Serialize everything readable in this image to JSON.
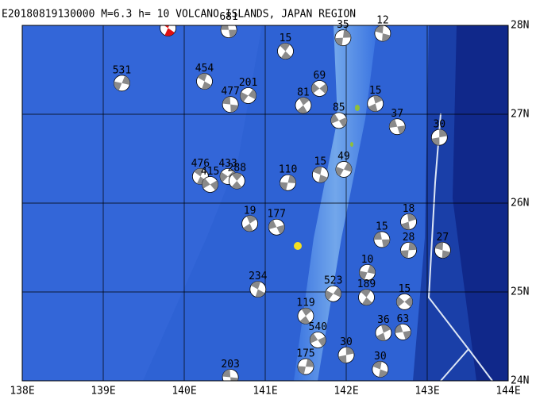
{
  "title": "E20180819130000 M=6.3 h= 10 VOLCANO ISLANDS, JAPAN REGION",
  "map": {
    "lonlim": [
      138,
      144
    ],
    "latlim": [
      24,
      28
    ],
    "lonticks": [
      {
        "value": 138,
        "label": "138E"
      },
      {
        "value": 139,
        "label": "139E"
      },
      {
        "value": 140,
        "label": "140E"
      },
      {
        "value": 141,
        "label": "141E"
      },
      {
        "value": 142,
        "label": "142E"
      },
      {
        "value": 143,
        "label": "143E"
      },
      {
        "value": 144,
        "label": "144E"
      }
    ],
    "latticks": [
      {
        "value": 24,
        "label": "24N"
      },
      {
        "value": 25,
        "label": "25N"
      },
      {
        "value": 26,
        "label": "26N"
      },
      {
        "value": 27,
        "label": "27N"
      },
      {
        "value": 28,
        "label": "28N"
      }
    ]
  },
  "main_event": {
    "lon": 139.8,
    "lat": 27.97,
    "color": "#e01010"
  },
  "events": [
    {
      "label": 681,
      "lon": 140.55,
      "lat": 27.95
    },
    {
      "label": 35,
      "lon": 141.96,
      "lat": 27.86
    },
    {
      "label": 12,
      "lon": 142.45,
      "lat": 27.91
    },
    {
      "label": 531,
      "lon": 139.23,
      "lat": 27.35
    },
    {
      "label": 454,
      "lon": 140.25,
      "lat": 27.37
    },
    {
      "label": 201,
      "lon": 140.79,
      "lat": 27.21
    },
    {
      "label": 15,
      "lon": 141.25,
      "lat": 27.71
    },
    {
      "label": 69,
      "lon": 141.67,
      "lat": 27.29
    },
    {
      "label": 81,
      "lon": 141.47,
      "lat": 27.1
    },
    {
      "label": 85,
      "lon": 141.91,
      "lat": 26.93
    },
    {
      "label": 15,
      "lon": 142.36,
      "lat": 27.12
    },
    {
      "label": 37,
      "lon": 142.63,
      "lat": 26.86
    },
    {
      "label": 30,
      "lon": 143.15,
      "lat": 26.74
    },
    {
      "label": 477,
      "lon": 140.57,
      "lat": 27.11
    },
    {
      "label": 110,
      "lon": 141.28,
      "lat": 26.23
    },
    {
      "label": 15,
      "lon": 141.68,
      "lat": 26.32
    },
    {
      "label": 49,
      "lon": 141.97,
      "lat": 26.38
    },
    {
      "label": 476,
      "lon": 140.2,
      "lat": 26.3
    },
    {
      "label": 433,
      "lon": 140.54,
      "lat": 26.3
    },
    {
      "label": 288,
      "lon": 140.65,
      "lat": 26.25
    },
    {
      "label": 415,
      "lon": 140.32,
      "lat": 26.21
    },
    {
      "label": 19,
      "lon": 140.81,
      "lat": 25.77
    },
    {
      "label": 177,
      "lon": 141.14,
      "lat": 25.73
    },
    {
      "label": 18,
      "lon": 142.77,
      "lat": 25.79
    },
    {
      "label": 15,
      "lon": 142.44,
      "lat": 25.59
    },
    {
      "label": 28,
      "lon": 142.77,
      "lat": 25.47
    },
    {
      "label": 27,
      "lon": 143.19,
      "lat": 25.47
    },
    {
      "label": 10,
      "lon": 142.26,
      "lat": 25.22
    },
    {
      "label": 234,
      "lon": 140.91,
      "lat": 25.03
    },
    {
      "label": 523,
      "lon": 141.84,
      "lat": 24.98
    },
    {
      "label": 189,
      "lon": 142.25,
      "lat": 24.94
    },
    {
      "label": 15,
      "lon": 142.72,
      "lat": 24.89
    },
    {
      "label": 119,
      "lon": 141.5,
      "lat": 24.73
    },
    {
      "label": 540,
      "lon": 141.65,
      "lat": 24.46
    },
    {
      "label": 36,
      "lon": 142.46,
      "lat": 24.54
    },
    {
      "label": 63,
      "lon": 142.7,
      "lat": 24.55
    },
    {
      "label": 30,
      "lon": 142.0,
      "lat": 24.29
    },
    {
      "label": 203,
      "lon": 140.57,
      "lat": 24.04
    },
    {
      "label": 175,
      "lon": 141.5,
      "lat": 24.16
    },
    {
      "label": 30,
      "lon": 142.42,
      "lat": 24.13
    }
  ]
}
